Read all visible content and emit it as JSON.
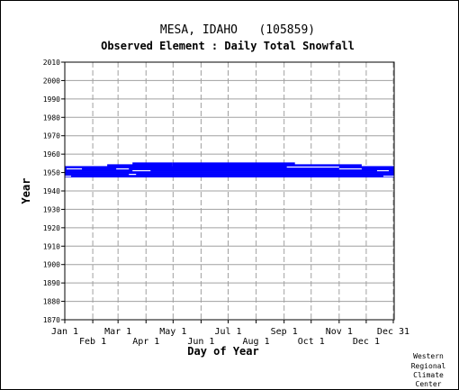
{
  "chart_data": {
    "type": "scatter",
    "title": "MESA, IDAHO   (105859)",
    "subtitle": "Observed Element : Daily Total Snowfall",
    "xlabel": "Day of Year",
    "ylabel": "Year",
    "ylim": [
      1870,
      2010
    ],
    "yticks": [
      2010,
      2000,
      1990,
      1980,
      1970,
      1960,
      1950,
      1940,
      1930,
      1920,
      1910,
      1900,
      1890,
      1880,
      1870
    ],
    "xticks_upper": [
      {
        "label": "Jan 1",
        "day": 1
      },
      {
        "label": "Mar 1",
        "day": 60
      },
      {
        "label": "May 1",
        "day": 121
      },
      {
        "label": "Jul 1",
        "day": 182
      },
      {
        "label": "Sep 1",
        "day": 244
      },
      {
        "label": "Nov 1",
        "day": 305
      },
      {
        "label": "Dec 31",
        "day": 365
      }
    ],
    "xticks_lower": [
      {
        "label": "Feb 1",
        "day": 32
      },
      {
        "label": "Apr 1",
        "day": 91
      },
      {
        "label": "Jun 1",
        "day": 152
      },
      {
        "label": "Aug 1",
        "day": 213
      },
      {
        "label": "Oct 1",
        "day": 274
      },
      {
        "label": "Dec 1",
        "day": 335
      }
    ],
    "xlim": [
      1,
      366
    ],
    "grid": true,
    "series_color": "#0000ff",
    "records": [
      {
        "year": 1948,
        "start": 1,
        "end": 366
      },
      {
        "year": 1949,
        "start": 1,
        "end": 366
      },
      {
        "year": 1950,
        "start": 1,
        "end": 366
      },
      {
        "year": 1951,
        "start": 1,
        "end": 366
      },
      {
        "year": 1952,
        "start": 1,
        "end": 366
      },
      {
        "year": 1953,
        "start": 1,
        "end": 366
      },
      {
        "year": 1954,
        "start": 48,
        "end": 120
      },
      {
        "year": 1954,
        "start": 120,
        "end": 330
      },
      {
        "year": 1955,
        "start": 76,
        "end": 120
      },
      {
        "year": 1955,
        "start": 120,
        "end": 256
      }
    ],
    "gaps": [
      {
        "year": 1952,
        "start": 3,
        "end": 20
      },
      {
        "year": 1952,
        "start": 58,
        "end": 72
      },
      {
        "year": 1951,
        "start": 76,
        "end": 96
      },
      {
        "year": 1949,
        "start": 72,
        "end": 80
      },
      {
        "year": 1953,
        "start": 247,
        "end": 305
      },
      {
        "year": 1952,
        "start": 305,
        "end": 330
      },
      {
        "year": 1951,
        "start": 347,
        "end": 360
      },
      {
        "year": 1948,
        "start": 1,
        "end": 8
      },
      {
        "year": 1948,
        "start": 354,
        "end": 366
      }
    ]
  },
  "credit": [
    "Western",
    "Regional",
    "Climate",
    "Center"
  ]
}
